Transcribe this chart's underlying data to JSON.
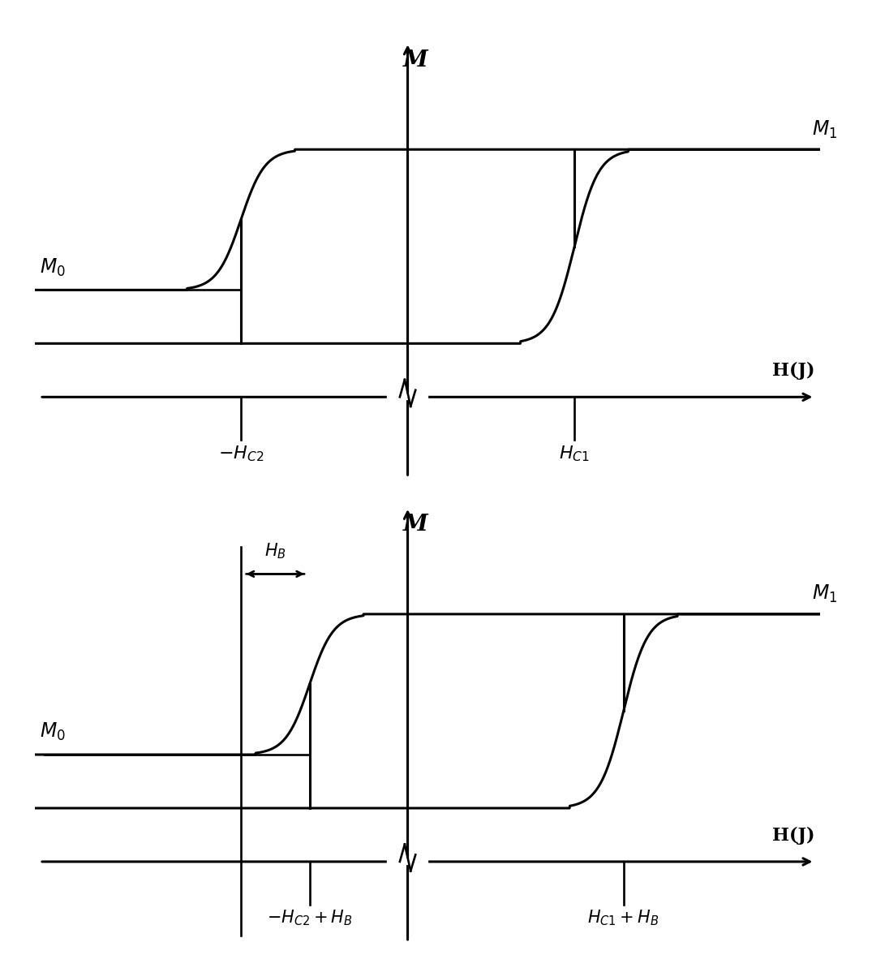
{
  "background_color": "#ffffff",
  "line_color": "#000000",
  "line_width": 2.2,
  "fig_width": 10.75,
  "fig_height": 11.93,
  "top_plot": {
    "xlim": [
      -3.8,
      4.2
    ],
    "ylim": [
      -0.9,
      2.5
    ],
    "hc2": -1.7,
    "hc1": 1.7,
    "m0_upper": 0.55,
    "m0_lower": 0.15,
    "m1": 1.6,
    "h_axis_y": -0.25,
    "m_axis_x": 0.0,
    "zigzag_x": 0.0,
    "tick_drop": 0.32
  },
  "bottom_plot": {
    "xlim": [
      -3.8,
      4.2
    ],
    "ylim": [
      -0.9,
      2.5
    ],
    "hc2": -1.0,
    "hc1": 2.2,
    "hb_orig": -1.7,
    "m0_upper": 0.55,
    "m0_lower": 0.15,
    "m1": 1.6,
    "h_axis_y": -0.25,
    "m_axis_x": 0.0,
    "zigzag_x": 0.0,
    "tick_drop": 0.32
  }
}
